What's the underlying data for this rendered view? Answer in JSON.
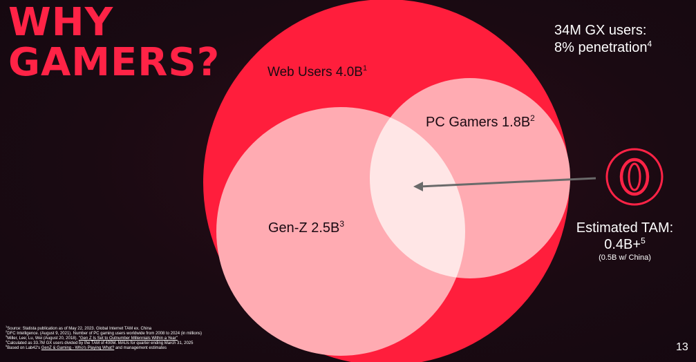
{
  "title": "WHY\nGAMERS?",
  "stat": {
    "line1": "34M GX users:",
    "line2": "8% penetration",
    "ref": "4"
  },
  "circles": {
    "web": {
      "label": "Web Users 4.0B",
      "ref": "1",
      "color": "#ff1e3c"
    },
    "pc": {
      "label": "PC Gamers 1.8B",
      "ref": "2",
      "color": "#ffabb2"
    },
    "genz": {
      "label": "Gen-Z 2.5B",
      "ref": "3",
      "color": "#ffabb2"
    },
    "overlap_color": "#ffe6e6"
  },
  "tam": {
    "label": "Estimated TAM:",
    "value": "0.4B+",
    "ref": "5",
    "note": "(0.5B w/ China)",
    "icon": "opera-gx-logo-icon"
  },
  "footnotes": [
    {
      "ref": "1",
      "text": "Source: Statista publication as of May 22, 2023. Global Internet TAM ex. China"
    },
    {
      "ref": "2",
      "text": "DFC Intelligence. (August 9, 2021). Number of PC gaming users worldwide from 2008 to 2024 (in millions)"
    },
    {
      "ref": "3",
      "prefix": "Miller, Lee; Lu, Wei (August 20, 2018). ",
      "link": "\"Gen Z Is Set to Outnumber Millennials Within a Year\""
    },
    {
      "ref": "4",
      "text": "Calculated as 33.7M GX users divided by the TAM of 400M. MAUs for quarter ending March 31, 2025"
    },
    {
      "ref": "5",
      "prefix": "Based on Lab42's ",
      "link": "GenZ & Gaming - Who's Playing What?",
      "suffix": " and management estimates"
    }
  ],
  "page_number": "13"
}
